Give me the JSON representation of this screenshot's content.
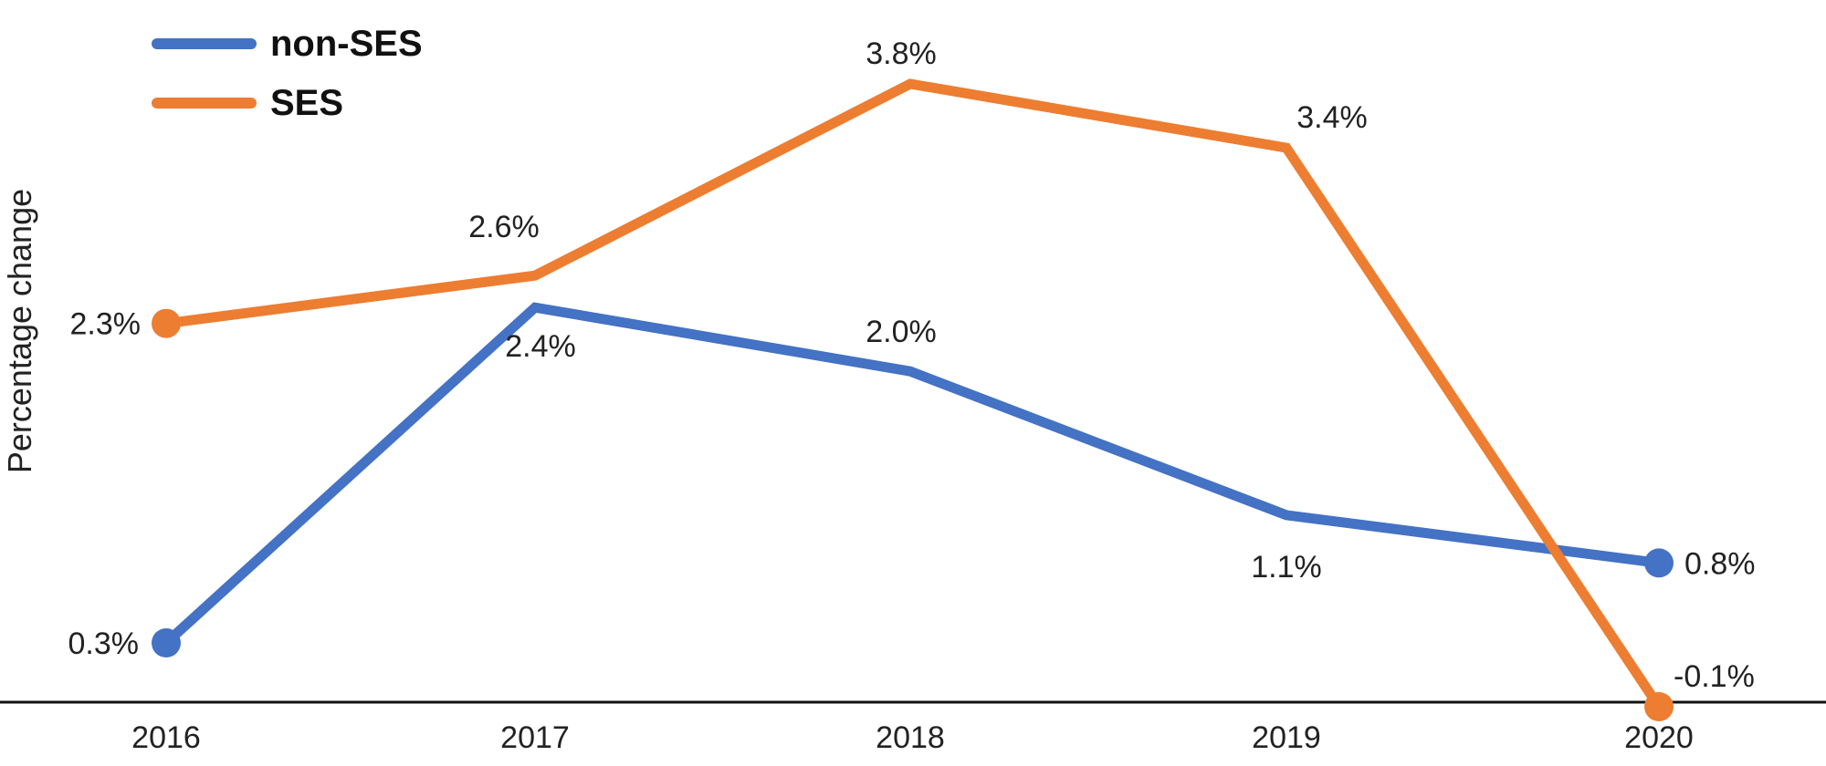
{
  "chart_data": {
    "type": "line",
    "categories": [
      "2016",
      "2017",
      "2018",
      "2019",
      "2020"
    ],
    "ylabel": "Percentage change",
    "ylim": [
      -0.1,
      4.0
    ],
    "grid": false,
    "legend_position": "top-left",
    "series": [
      {
        "name": "non-SES",
        "color": "#4472C4",
        "values": [
          0.3,
          2.4,
          2.0,
          1.1,
          0.8
        ],
        "labels": [
          "0.3%",
          "2.4%",
          "2.0%",
          "1.1%",
          "0.8%"
        ]
      },
      {
        "name": "SES",
        "color": "#ED7D31",
        "values": [
          2.3,
          2.6,
          3.8,
          3.4,
          -0.1
        ],
        "labels": [
          "2.3%",
          "2.6%",
          "3.8%",
          "3.4%",
          "-0.1%"
        ]
      }
    ]
  }
}
